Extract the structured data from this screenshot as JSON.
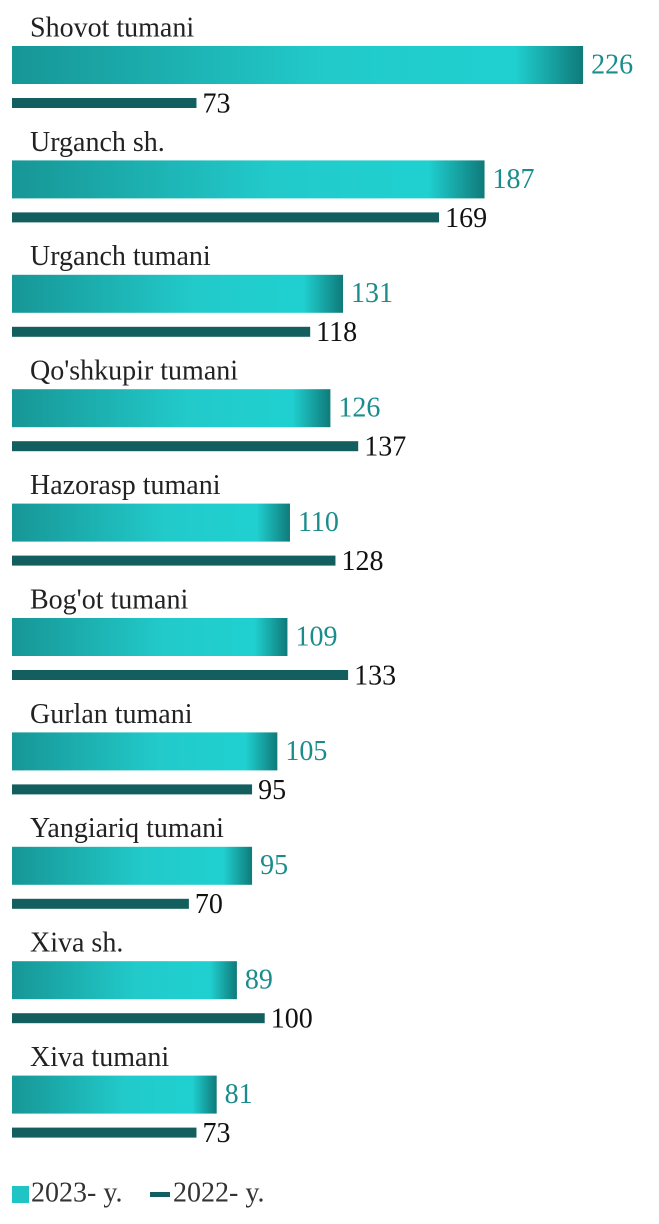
{
  "chart_data": {
    "type": "bar",
    "orientation": "horizontal",
    "categories": [
      "Shovot  tumani",
      "Urganch sh.",
      "Urganch  tumani",
      "Qo'shkupir  tumani",
      "Hazorasp  tumani",
      "Bog'ot  tumani",
      "Gurlan  tumani",
      "Yangiariq  tumani",
      "Xiva sh.",
      "Xiva  tumani"
    ],
    "series": [
      {
        "name": "2023- y.",
        "color": "#20c4c4",
        "values": [
          226,
          187,
          131,
          126,
          110,
          109,
          105,
          95,
          89,
          81
        ]
      },
      {
        "name": "2022- y.",
        "color": "#135e5e",
        "values": [
          73,
          169,
          118,
          137,
          128,
          133,
          95,
          70,
          100,
          73
        ]
      }
    ],
    "legend": "bottom-left"
  }
}
